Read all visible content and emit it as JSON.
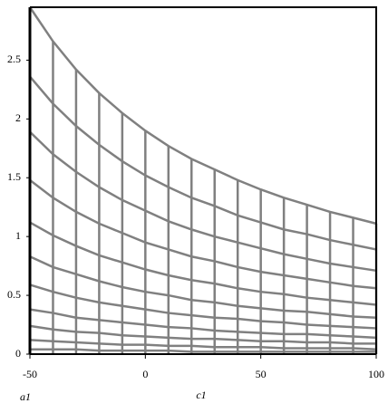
{
  "chart_data": {
    "type": "mesh",
    "xlabel": "c1",
    "ylabel": "a1",
    "x": [
      -50,
      -40,
      -30,
      -20,
      -10,
      0,
      10,
      20,
      30,
      40,
      50,
      60,
      70,
      80,
      90,
      100
    ],
    "series": [
      {
        "color": "#808080",
        "values": [
          2.95,
          2.66,
          2.42,
          2.22,
          2.05,
          1.9,
          1.77,
          1.66,
          1.57,
          1.48,
          1.4,
          1.33,
          1.27,
          1.21,
          1.16,
          1.11
        ]
      },
      {
        "color": "#808080",
        "values": [
          2.36,
          2.13,
          1.94,
          1.78,
          1.64,
          1.52,
          1.42,
          1.33,
          1.26,
          1.18,
          1.12,
          1.06,
          1.02,
          0.97,
          0.93,
          0.89
        ]
      },
      {
        "color": "#808080",
        "values": [
          1.89,
          1.7,
          1.55,
          1.42,
          1.31,
          1.22,
          1.13,
          1.06,
          1.0,
          0.95,
          0.9,
          0.85,
          0.81,
          0.77,
          0.74,
          0.71
        ]
      },
      {
        "color": "#808080",
        "values": [
          1.48,
          1.33,
          1.21,
          1.11,
          1.03,
          0.95,
          0.89,
          0.83,
          0.79,
          0.74,
          0.7,
          0.67,
          0.64,
          0.61,
          0.58,
          0.56
        ]
      },
      {
        "color": "#808080",
        "values": [
          1.12,
          1.01,
          0.92,
          0.84,
          0.78,
          0.72,
          0.67,
          0.63,
          0.6,
          0.56,
          0.53,
          0.51,
          0.48,
          0.46,
          0.44,
          0.42
        ]
      },
      {
        "color": "#808080",
        "values": [
          0.83,
          0.74,
          0.68,
          0.62,
          0.57,
          0.53,
          0.5,
          0.46,
          0.44,
          0.41,
          0.39,
          0.37,
          0.36,
          0.34,
          0.32,
          0.31
        ]
      },
      {
        "color": "#808080",
        "values": [
          0.59,
          0.53,
          0.48,
          0.44,
          0.41,
          0.38,
          0.35,
          0.33,
          0.31,
          0.3,
          0.28,
          0.27,
          0.25,
          0.24,
          0.23,
          0.22
        ]
      },
      {
        "color": "#808080",
        "values": [
          0.38,
          0.35,
          0.31,
          0.29,
          0.27,
          0.25,
          0.23,
          0.22,
          0.2,
          0.19,
          0.18,
          0.17,
          0.17,
          0.16,
          0.15,
          0.14
        ]
      },
      {
        "color": "#808080",
        "values": [
          0.24,
          0.21,
          0.19,
          0.18,
          0.16,
          0.15,
          0.14,
          0.13,
          0.13,
          0.12,
          0.11,
          0.11,
          0.1,
          0.1,
          0.09,
          0.09
        ]
      },
      {
        "color": "#808080",
        "values": [
          0.12,
          0.11,
          0.1,
          0.09,
          0.08,
          0.08,
          0.07,
          0.07,
          0.06,
          0.06,
          0.06,
          0.05,
          0.05,
          0.05,
          0.05,
          0.04
        ]
      },
      {
        "color": "#808080",
        "values": [
          0.04,
          0.04,
          0.04,
          0.03,
          0.03,
          0.03,
          0.03,
          0.02,
          0.02,
          0.02,
          0.02,
          0.02,
          0.02,
          0.02,
          0.02,
          0.02
        ]
      }
    ],
    "xlim": [
      -50,
      100
    ],
    "ylim": [
      0,
      2.95
    ],
    "xticks": [
      -50,
      0,
      50,
      100
    ],
    "yticks": [
      0,
      0.5,
      1,
      1.5,
      2,
      2.5
    ]
  }
}
